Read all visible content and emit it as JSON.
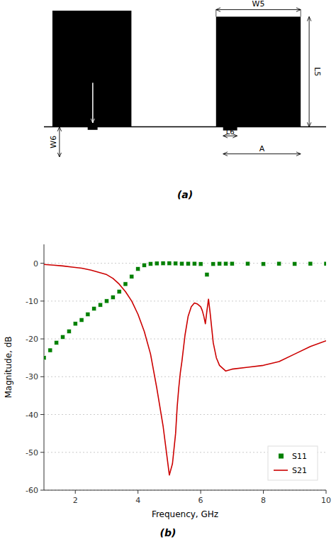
{
  "chart_data": {
    "type": "line",
    "annotations": [
      "(a)",
      "W5",
      "L5",
      "L6",
      "A",
      "W6",
      "(b)"
    ],
    "xlabel": "Frequency, GHz",
    "ylabel": "Magnitude, dB",
    "xlim": [
      1,
      10
    ],
    "ylim": [
      -60,
      5
    ],
    "xticks": [
      2,
      4,
      6,
      8,
      10
    ],
    "yticks": [
      0,
      -10,
      -20,
      -30,
      -40,
      -50,
      -60
    ],
    "grid": true,
    "legend": "lower right",
    "series": [
      {
        "name": "S11",
        "type": "scatter",
        "marker": "square",
        "color": "#008000",
        "x": [
          1.0,
          1.2,
          1.4,
          1.6,
          1.8,
          2.0,
          2.2,
          2.4,
          2.6,
          2.8,
          3.0,
          3.2,
          3.4,
          3.6,
          3.8,
          4.0,
          4.2,
          4.4,
          4.6,
          4.8,
          5.0,
          5.2,
          5.4,
          5.6,
          5.8,
          6.0,
          6.2,
          6.4,
          6.6,
          6.8,
          7.0,
          7.5,
          8.0,
          8.5,
          9.0,
          9.5,
          10.0
        ],
        "values": [
          -25,
          -23,
          -21,
          -19.5,
          -18,
          -16,
          -15,
          -13.5,
          -12,
          -11,
          -10,
          -9,
          -7.5,
          -5.5,
          -3.5,
          -1.5,
          -0.5,
          -0.15,
          -0.05,
          -0.02,
          -0.02,
          -0.05,
          -0.1,
          -0.1,
          -0.1,
          -0.2,
          -3.0,
          -0.2,
          -0.1,
          -0.1,
          -0.1,
          -0.1,
          -0.2,
          -0.1,
          -0.15,
          -0.1,
          -0.1
        ]
      },
      {
        "name": "S21",
        "type": "line",
        "color": "#cc0000",
        "x": [
          1.0,
          1.3,
          1.6,
          1.9,
          2.2,
          2.5,
          2.8,
          3.0,
          3.2,
          3.4,
          3.6,
          3.8,
          4.0,
          4.2,
          4.4,
          4.6,
          4.8,
          5.0,
          5.1,
          5.2,
          5.25,
          5.3,
          5.35,
          5.4,
          5.5,
          5.6,
          5.7,
          5.8,
          5.9,
          6.0,
          6.05,
          6.1,
          6.15,
          6.2,
          6.25,
          6.3,
          6.4,
          6.5,
          6.6,
          6.8,
          7.0,
          7.5,
          8.0,
          8.5,
          9.0,
          9.5,
          10.0
        ],
        "values": [
          -0.3,
          -0.5,
          -0.7,
          -1.0,
          -1.3,
          -1.8,
          -2.5,
          -3.0,
          -4.0,
          -5.5,
          -7.5,
          -10.0,
          -13.5,
          -18.0,
          -24.0,
          -33.0,
          -43.0,
          -56.0,
          -53.0,
          -45.0,
          -38.0,
          -33.0,
          -29.0,
          -26.0,
          -19.0,
          -14.0,
          -11.5,
          -10.5,
          -10.8,
          -11.5,
          -12.5,
          -14.0,
          -16.0,
          -12.5,
          -9.5,
          -13.0,
          -21.0,
          -25.0,
          -27.0,
          -28.5,
          -28.0,
          -27.5,
          -27.0,
          -26.0,
          -24.0,
          -22.0,
          -20.5
        ]
      }
    ]
  }
}
